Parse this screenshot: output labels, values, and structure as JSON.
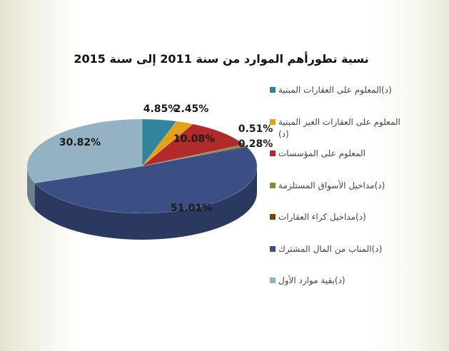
{
  "chart_data": {
    "type": "pie",
    "title": "نسبة تطورأهم الموارد من سنة 2011 إلى سنة 2015",
    "legend_position": "right",
    "style": "3d",
    "slices": [
      {
        "label": "(د)المعلوم على العقارات المبنية",
        "value": 4.85,
        "value_label": "4.85%",
        "color": "#31849b"
      },
      {
        "label": "المعلوم على العقارات الغير المبنية (د)",
        "value": 2.45,
        "value_label": "2.45%",
        "color": "#e3a21a"
      },
      {
        "label": "المعلوم على المؤسسات",
        "value": 10.08,
        "value_label": "10.08%",
        "color": "#b22a2a"
      },
      {
        "label": "(د)مداخيل الأسواق المستلزمة",
        "value": 0.51,
        "value_label": "0.51%",
        "color": "#77933c"
      },
      {
        "label": "(د)مداخيل كراء العقارات",
        "value": 0.28,
        "value_label": "0.28%",
        "color": "#7f3f0a"
      },
      {
        "label": "(د)المناب من المال المشترك",
        "value": 51.01,
        "value_label": "51.01%",
        "color": "#3c4f85"
      },
      {
        "label": "(د)بقية موارد الأول",
        "value": 30.82,
        "value_label": "30.82%",
        "color": "#93b3c4"
      }
    ]
  }
}
